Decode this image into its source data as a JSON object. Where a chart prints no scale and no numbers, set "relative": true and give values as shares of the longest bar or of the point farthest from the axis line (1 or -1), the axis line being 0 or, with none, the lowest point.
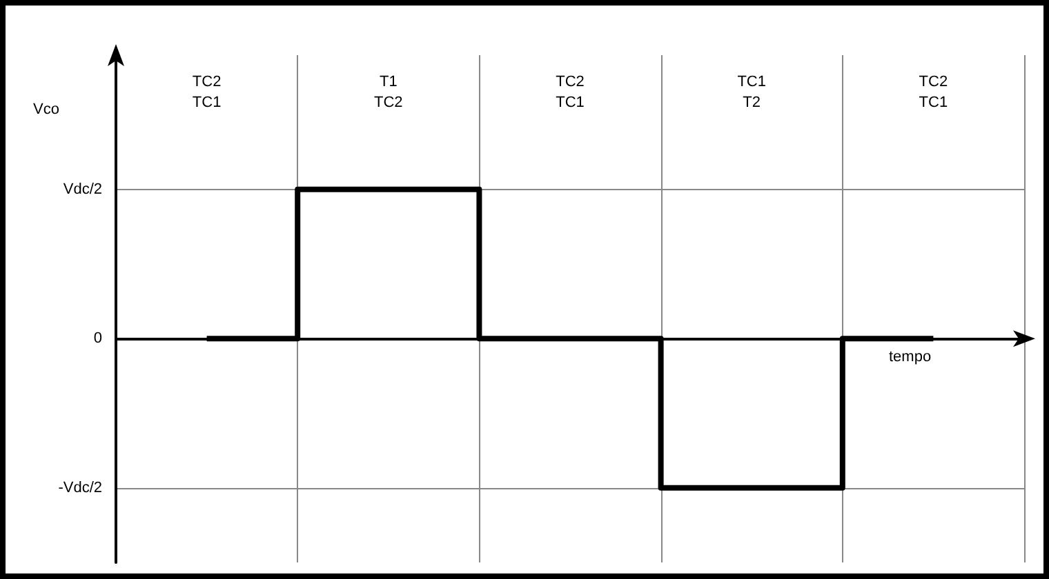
{
  "chart_data": {
    "type": "step",
    "xlabel": "tempo",
    "ylabel": "Vco",
    "relative": true,
    "categories": [
      "TC2\nTC1",
      "T1\nTC2",
      "TC2\nTC1",
      "TC1\nT2",
      "TC2\nTC1"
    ],
    "series": [
      {
        "color": "#000000",
        "values": [
          0,
          1,
          0,
          -1,
          0
        ]
      }
    ],
    "grid": true,
    "marker": "none",
    "line_style": "solid",
    "annotations": [
      "Vdc/2",
      "0",
      "-Vdc/2"
    ]
  }
}
